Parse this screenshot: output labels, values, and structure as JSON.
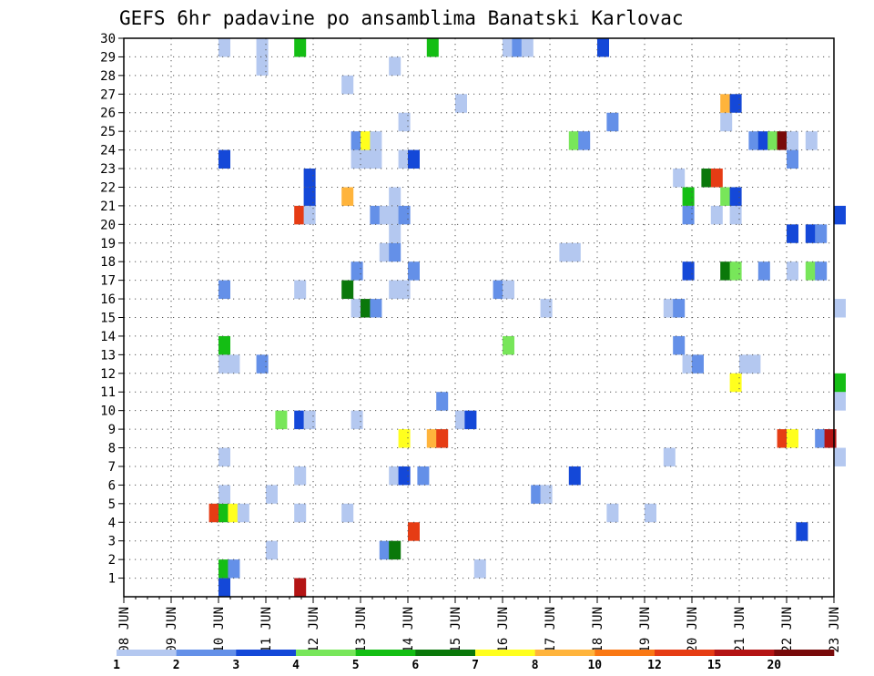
{
  "chart_data": {
    "type": "heatmap",
    "title": "GEFS 6hr padavine po ansamblima Banatski Karlovac",
    "xlabel": "",
    "ylabel": "",
    "x_tick_labels": [
      "08 JUN",
      "09 JUN",
      "10 JUN",
      "11 JUN",
      "12 JUN",
      "13 JUN",
      "14 JUN",
      "15 JUN",
      "16 JUN",
      "17 JUN",
      "18 JUN",
      "19 JUN",
      "20 JUN",
      "21 JUN",
      "22 JUN",
      "23 JUN"
    ],
    "y_tick_labels": [
      "1",
      "2",
      "3",
      "4",
      "5",
      "6",
      "7",
      "8",
      "9",
      "10",
      "11",
      "12",
      "13",
      "14",
      "15",
      "16",
      "17",
      "18",
      "19",
      "20",
      "21",
      "22",
      "23",
      "24",
      "25",
      "26",
      "27",
      "28",
      "29",
      "30"
    ],
    "x_range": [
      "08 JUN 00",
      "23 JUN 00"
    ],
    "y_range": [
      0,
      30
    ],
    "grid": true,
    "time_step_hours": 6,
    "legend": {
      "placement": "bottom",
      "labels": [
        "1",
        "2",
        "3",
        "4",
        "5",
        "6",
        "7",
        "8",
        "10",
        "12",
        "15",
        "20"
      ],
      "colors": [
        "#b4c8f0",
        "#6490e8",
        "#1448d8",
        "#78e65a",
        "#14be14",
        "#0a780a",
        "#ffff1e",
        "#ffb43c",
        "#fa7814",
        "#e63c14",
        "#b41414",
        "#780a0a"
      ]
    },
    "cells": [
      {
        "day": 2.0,
        "member": 0,
        "bin": 2
      },
      {
        "day": 3.6,
        "member": 0,
        "bin": 10
      },
      {
        "day": 2.0,
        "member": 1,
        "bin": 4
      },
      {
        "day": 2.2,
        "member": 1,
        "bin": 1
      },
      {
        "day": 7.4,
        "member": 1,
        "bin": 0
      },
      {
        "day": 3.0,
        "member": 2,
        "bin": 0
      },
      {
        "day": 5.4,
        "member": 2,
        "bin": 1
      },
      {
        "day": 5.6,
        "member": 2,
        "bin": 5
      },
      {
        "day": 6.0,
        "member": 3,
        "bin": 9
      },
      {
        "day": 14.2,
        "member": 3,
        "bin": 2
      },
      {
        "day": 1.8,
        "member": 4,
        "bin": 9
      },
      {
        "day": 2.0,
        "member": 4,
        "bin": 4
      },
      {
        "day": 2.2,
        "member": 4,
        "bin": 6
      },
      {
        "day": 2.4,
        "member": 4,
        "bin": 0
      },
      {
        "day": 3.6,
        "member": 4,
        "bin": 0
      },
      {
        "day": 4.6,
        "member": 4,
        "bin": 0
      },
      {
        "day": 10.2,
        "member": 4,
        "bin": 0
      },
      {
        "day": 11.0,
        "member": 4,
        "bin": 0
      },
      {
        "day": 2.0,
        "member": 5,
        "bin": 0
      },
      {
        "day": 3.0,
        "member": 5,
        "bin": 0
      },
      {
        "day": 8.6,
        "member": 5,
        "bin": 1
      },
      {
        "day": 8.8,
        "member": 5,
        "bin": 0
      },
      {
        "day": 3.6,
        "member": 6,
        "bin": 0
      },
      {
        "day": 5.6,
        "member": 6,
        "bin": 0
      },
      {
        "day": 5.8,
        "member": 6,
        "bin": 2
      },
      {
        "day": 6.2,
        "member": 6,
        "bin": 1
      },
      {
        "day": 9.4,
        "member": 6,
        "bin": 2
      },
      {
        "day": 2.0,
        "member": 7,
        "bin": 0
      },
      {
        "day": 11.4,
        "member": 7,
        "bin": 0
      },
      {
        "day": 15.0,
        "member": 7,
        "bin": 0
      },
      {
        "day": 5.8,
        "member": 8,
        "bin": 6
      },
      {
        "day": 6.4,
        "member": 8,
        "bin": 7
      },
      {
        "day": 6.6,
        "member": 8,
        "bin": 9
      },
      {
        "day": 13.8,
        "member": 8,
        "bin": 9
      },
      {
        "day": 14.0,
        "member": 8,
        "bin": 6
      },
      {
        "day": 14.6,
        "member": 8,
        "bin": 1
      },
      {
        "day": 14.8,
        "member": 8,
        "bin": 10
      },
      {
        "day": 3.2,
        "member": 9,
        "bin": 3
      },
      {
        "day": 3.6,
        "member": 9,
        "bin": 2
      },
      {
        "day": 3.8,
        "member": 9,
        "bin": 0
      },
      {
        "day": 4.8,
        "member": 9,
        "bin": 0
      },
      {
        "day": 7.0,
        "member": 9,
        "bin": 0
      },
      {
        "day": 7.2,
        "member": 9,
        "bin": 2
      },
      {
        "day": 6.6,
        "member": 10,
        "bin": 1
      },
      {
        "day": 15.0,
        "member": 10,
        "bin": 0
      },
      {
        "day": 12.8,
        "member": 11,
        "bin": 6
      },
      {
        "day": 15.0,
        "member": 11,
        "bin": 4
      },
      {
        "day": 2.0,
        "member": 12,
        "bin": 0
      },
      {
        "day": 2.2,
        "member": 12,
        "bin": 0
      },
      {
        "day": 2.8,
        "member": 12,
        "bin": 1
      },
      {
        "day": 11.8,
        "member": 12,
        "bin": 0
      },
      {
        "day": 12.0,
        "member": 12,
        "bin": 1
      },
      {
        "day": 13.0,
        "member": 12,
        "bin": 0
      },
      {
        "day": 13.2,
        "member": 12,
        "bin": 0
      },
      {
        "day": 2.0,
        "member": 13,
        "bin": 4
      },
      {
        "day": 8.0,
        "member": 13,
        "bin": 3
      },
      {
        "day": 11.6,
        "member": 13,
        "bin": 1
      },
      {
        "day": 4.8,
        "member": 15,
        "bin": 0
      },
      {
        "day": 5.0,
        "member": 15,
        "bin": 5
      },
      {
        "day": 5.2,
        "member": 15,
        "bin": 1
      },
      {
        "day": 8.8,
        "member": 15,
        "bin": 0
      },
      {
        "day": 11.4,
        "member": 15,
        "bin": 0
      },
      {
        "day": 11.6,
        "member": 15,
        "bin": 1
      },
      {
        "day": 15.0,
        "member": 15,
        "bin": 0
      },
      {
        "day": 2.0,
        "member": 16,
        "bin": 1
      },
      {
        "day": 3.6,
        "member": 16,
        "bin": 0
      },
      {
        "day": 4.6,
        "member": 16,
        "bin": 5
      },
      {
        "day": 5.6,
        "member": 16,
        "bin": 0
      },
      {
        "day": 5.8,
        "member": 16,
        "bin": 0
      },
      {
        "day": 7.8,
        "member": 16,
        "bin": 1
      },
      {
        "day": 8.0,
        "member": 16,
        "bin": 0
      },
      {
        "day": 4.8,
        "member": 17,
        "bin": 1
      },
      {
        "day": 6.0,
        "member": 17,
        "bin": 1
      },
      {
        "day": 11.8,
        "member": 17,
        "bin": 2
      },
      {
        "day": 12.6,
        "member": 17,
        "bin": 5
      },
      {
        "day": 12.8,
        "member": 17,
        "bin": 3
      },
      {
        "day": 13.4,
        "member": 17,
        "bin": 1
      },
      {
        "day": 14.0,
        "member": 17,
        "bin": 0
      },
      {
        "day": 14.4,
        "member": 17,
        "bin": 3
      },
      {
        "day": 14.6,
        "member": 17,
        "bin": 1
      },
      {
        "day": 5.4,
        "member": 18,
        "bin": 0
      },
      {
        "day": 5.6,
        "member": 18,
        "bin": 1
      },
      {
        "day": 9.2,
        "member": 18,
        "bin": 0
      },
      {
        "day": 9.4,
        "member": 18,
        "bin": 0
      },
      {
        "day": 5.6,
        "member": 19,
        "bin": 0
      },
      {
        "day": 14.0,
        "member": 19,
        "bin": 2
      },
      {
        "day": 14.4,
        "member": 19,
        "bin": 2
      },
      {
        "day": 14.6,
        "member": 19,
        "bin": 1
      },
      {
        "day": 3.6,
        "member": 20,
        "bin": 9
      },
      {
        "day": 3.8,
        "member": 20,
        "bin": 0
      },
      {
        "day": 5.2,
        "member": 20,
        "bin": 1
      },
      {
        "day": 5.4,
        "member": 20,
        "bin": 0
      },
      {
        "day": 5.6,
        "member": 20,
        "bin": 0
      },
      {
        "day": 5.8,
        "member": 20,
        "bin": 1
      },
      {
        "day": 11.8,
        "member": 20,
        "bin": 1
      },
      {
        "day": 12.4,
        "member": 20,
        "bin": 0
      },
      {
        "day": 12.8,
        "member": 20,
        "bin": 0
      },
      {
        "day": 15.0,
        "member": 20,
        "bin": 2
      },
      {
        "day": 3.8,
        "member": 21,
        "bin": 2
      },
      {
        "day": 4.6,
        "member": 21,
        "bin": 7
      },
      {
        "day": 5.6,
        "member": 21,
        "bin": 0
      },
      {
        "day": 11.8,
        "member": 21,
        "bin": 4
      },
      {
        "day": 12.6,
        "member": 21,
        "bin": 3
      },
      {
        "day": 12.8,
        "member": 21,
        "bin": 2
      },
      {
        "day": 3.8,
        "member": 22,
        "bin": 2
      },
      {
        "day": 11.6,
        "member": 22,
        "bin": 0
      },
      {
        "day": 12.2,
        "member": 22,
        "bin": 5
      },
      {
        "day": 12.4,
        "member": 22,
        "bin": 9
      },
      {
        "day": 2.0,
        "member": 23,
        "bin": 2
      },
      {
        "day": 4.8,
        "member": 23,
        "bin": 0
      },
      {
        "day": 5.0,
        "member": 23,
        "bin": 0
      },
      {
        "day": 5.2,
        "member": 23,
        "bin": 0
      },
      {
        "day": 5.8,
        "member": 23,
        "bin": 0
      },
      {
        "day": 6.0,
        "member": 23,
        "bin": 2
      },
      {
        "day": 14.0,
        "member": 23,
        "bin": 1
      },
      {
        "day": 4.8,
        "member": 24,
        "bin": 1
      },
      {
        "day": 5.0,
        "member": 24,
        "bin": 6
      },
      {
        "day": 5.2,
        "member": 24,
        "bin": 0
      },
      {
        "day": 9.4,
        "member": 24,
        "bin": 3
      },
      {
        "day": 9.6,
        "member": 24,
        "bin": 1
      },
      {
        "day": 13.2,
        "member": 24,
        "bin": 1
      },
      {
        "day": 13.4,
        "member": 24,
        "bin": 2
      },
      {
        "day": 13.6,
        "member": 24,
        "bin": 3
      },
      {
        "day": 13.8,
        "member": 24,
        "bin": 11
      },
      {
        "day": 14.0,
        "member": 24,
        "bin": 0
      },
      {
        "day": 14.4,
        "member": 24,
        "bin": 0
      },
      {
        "day": 5.8,
        "member": 25,
        "bin": 0
      },
      {
        "day": 10.2,
        "member": 25,
        "bin": 1
      },
      {
        "day": 12.6,
        "member": 25,
        "bin": 0
      },
      {
        "day": 7.0,
        "member": 26,
        "bin": 0
      },
      {
        "day": 12.6,
        "member": 26,
        "bin": 7
      },
      {
        "day": 12.8,
        "member": 26,
        "bin": 2
      },
      {
        "day": 4.6,
        "member": 27,
        "bin": 0
      },
      {
        "day": 2.8,
        "member": 28,
        "bin": 0
      },
      {
        "day": 5.6,
        "member": 28,
        "bin": 0
      },
      {
        "day": 2.0,
        "member": 29,
        "bin": 0
      },
      {
        "day": 2.8,
        "member": 29,
        "bin": 0
      },
      {
        "day": 3.6,
        "member": 29,
        "bin": 4
      },
      {
        "day": 6.4,
        "member": 29,
        "bin": 4
      },
      {
        "day": 8.0,
        "member": 29,
        "bin": 0
      },
      {
        "day": 8.2,
        "member": 29,
        "bin": 1
      },
      {
        "day": 8.4,
        "member": 29,
        "bin": 0
      },
      {
        "day": 10.0,
        "member": 29,
        "bin": 2
      }
    ]
  }
}
